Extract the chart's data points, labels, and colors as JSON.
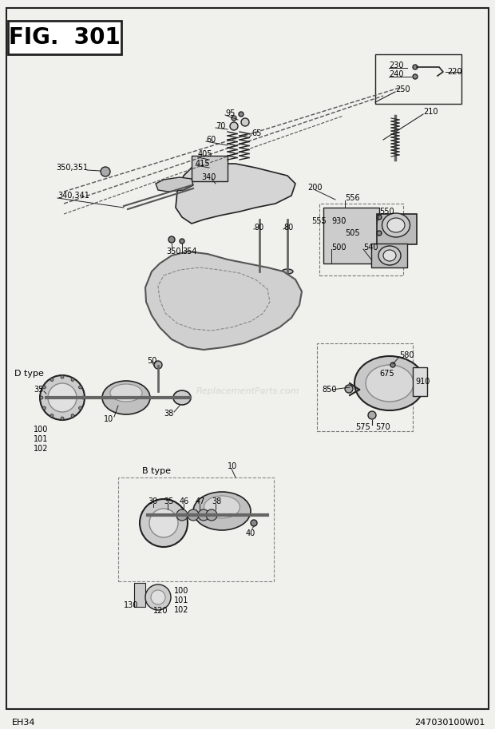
{
  "title": "FIG. 301",
  "bottom_left": "EH34",
  "bottom_right": "247030100W01",
  "bg_color": "#f0f0ec",
  "border_color": "#111111",
  "watermark": "ReplacementParts.com",
  "fig_width": 6.2,
  "fig_height": 9.13,
  "dpi": 100
}
